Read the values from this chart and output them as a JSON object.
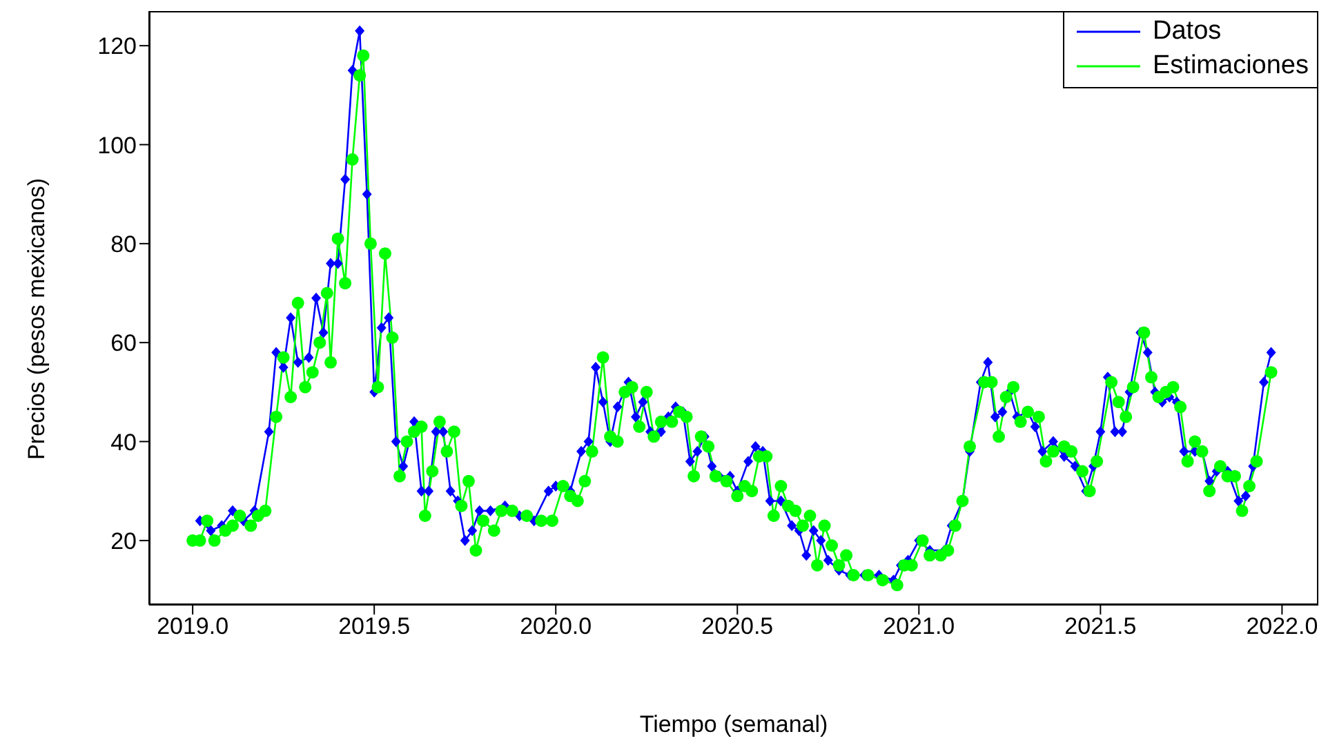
{
  "chart_data": {
    "type": "line",
    "xlabel": "Tiempo (semanal)",
    "ylabel": "Precios (pesos mexicanos)",
    "xlim": [
      2018.88,
      2022.1
    ],
    "xticks": [
      {
        "value": 2019,
        "label": "2019.0"
      },
      {
        "value": 2019.5,
        "label": "2019.5"
      },
      {
        "value": 2020,
        "label": "2020.0"
      },
      {
        "value": 2020.5,
        "label": "2020.5"
      },
      {
        "value": 2021,
        "label": "2021.0"
      },
      {
        "value": 2021.5,
        "label": "2021.5"
      },
      {
        "value": 2022,
        "label": "2022.0"
      }
    ],
    "ylim": [
      7,
      127
    ],
    "yticks": [
      20,
      40,
      60,
      80,
      100,
      120
    ],
    "grid": false,
    "legend": "top right",
    "line_style": "solid",
    "series": [
      {
        "name": "Datos",
        "color": "#0000ff",
        "marker": "diamond",
        "x": [
          2019.02,
          2019.05,
          2019.08,
          2019.11,
          2019.14,
          2019.17,
          2019.21,
          2019.23,
          2019.25,
          2019.27,
          2019.29,
          2019.32,
          2019.34,
          2019.36,
          2019.38,
          2019.4,
          2019.42,
          2019.44,
          2019.46,
          2019.48,
          2019.5,
          2019.52,
          2019.54,
          2019.56,
          2019.58,
          2019.61,
          2019.63,
          2019.65,
          2019.67,
          2019.69,
          2019.71,
          2019.73,
          2019.75,
          2019.77,
          2019.79,
          2019.82,
          2019.86,
          2019.9,
          2019.94,
          2019.98,
          2020,
          2020.04,
          2020.07,
          2020.09,
          2020.11,
          2020.13,
          2020.15,
          2020.17,
          2020.2,
          2020.22,
          2020.24,
          2020.26,
          2020.29,
          2020.31,
          2020.33,
          2020.35,
          2020.37,
          2020.39,
          2020.41,
          2020.43,
          2020.45,
          2020.48,
          2020.5,
          2020.53,
          2020.55,
          2020.57,
          2020.59,
          2020.62,
          2020.65,
          2020.67,
          2020.69,
          2020.71,
          2020.73,
          2020.75,
          2020.78,
          2020.81,
          2020.85,
          2020.89,
          2020.93,
          2020.95,
          2020.97,
          2021,
          2021.03,
          2021.07,
          2021.09,
          2021.12,
          2021.14,
          2021.17,
          2021.19,
          2021.21,
          2021.23,
          2021.25,
          2021.27,
          2021.3,
          2021.32,
          2021.34,
          2021.37,
          2021.4,
          2021.43,
          2021.46,
          2021.48,
          2021.5,
          2021.52,
          2021.54,
          2021.56,
          2021.58,
          2021.61,
          2021.63,
          2021.65,
          2021.67,
          2021.69,
          2021.71,
          2021.73,
          2021.76,
          2021.78,
          2021.8,
          2021.82,
          2021.85,
          2021.88,
          2021.9,
          2021.92,
          2021.95,
          2021.97
        ],
        "values": [
          24,
          22,
          23,
          26,
          24,
          26,
          42,
          58,
          55,
          65,
          56,
          57,
          69,
          62,
          76,
          76,
          93,
          115,
          123,
          90,
          50,
          63,
          65,
          40,
          35,
          44,
          30,
          30,
          42,
          42,
          30,
          28,
          20,
          22,
          26,
          26,
          27,
          25,
          24,
          30,
          31,
          30,
          38,
          40,
          55,
          48,
          40,
          47,
          52,
          45,
          48,
          42,
          42,
          45,
          47,
          46,
          36,
          38,
          41,
          35,
          33,
          33,
          30,
          36,
          39,
          38,
          28,
          28,
          23,
          22,
          17,
          22,
          20,
          16,
          14,
          13,
          13,
          13,
          12,
          15,
          16,
          20,
          18,
          18,
          23,
          28,
          38,
          52,
          56,
          45,
          46,
          50,
          45,
          46,
          43,
          38,
          40,
          37,
          35,
          30,
          35,
          42,
          53,
          42,
          42,
          50,
          62,
          58,
          50,
          48,
          49,
          48,
          38,
          38,
          38,
          32,
          34,
          34,
          28,
          29,
          35,
          52,
          58
        ]
      },
      {
        "name": "Estimaciones",
        "color": "#00ff00",
        "marker": "circle",
        "x": [
          2019,
          2019.02,
          2019.04,
          2019.06,
          2019.09,
          2019.11,
          2019.13,
          2019.16,
          2019.18,
          2019.2,
          2019.23,
          2019.25,
          2019.27,
          2019.29,
          2019.31,
          2019.33,
          2019.35,
          2019.37,
          2019.38,
          2019.4,
          2019.42,
          2019.44,
          2019.46,
          2019.47,
          2019.49,
          2019.51,
          2019.53,
          2019.55,
          2019.57,
          2019.59,
          2019.61,
          2019.63,
          2019.64,
          2019.66,
          2019.68,
          2019.7,
          2019.72,
          2019.74,
          2019.76,
          2019.78,
          2019.8,
          2019.83,
          2019.85,
          2019.88,
          2019.92,
          2019.96,
          2019.99,
          2020.02,
          2020.04,
          2020.06,
          2020.08,
          2020.1,
          2020.13,
          2020.15,
          2020.17,
          2020.19,
          2020.21,
          2020.23,
          2020.25,
          2020.27,
          2020.29,
          2020.32,
          2020.34,
          2020.36,
          2020.38,
          2020.4,
          2020.42,
          2020.44,
          2020.47,
          2020.5,
          2020.52,
          2020.54,
          2020.56,
          2020.58,
          2020.6,
          2020.62,
          2020.64,
          2020.66,
          2020.68,
          2020.7,
          2020.72,
          2020.74,
          2020.76,
          2020.78,
          2020.8,
          2020.82,
          2020.86,
          2020.9,
          2020.94,
          2020.96,
          2020.98,
          2021.01,
          2021.03,
          2021.06,
          2021.08,
          2021.1,
          2021.12,
          2021.14,
          2021.18,
          2021.2,
          2021.22,
          2021.24,
          2021.26,
          2021.28,
          2021.3,
          2021.33,
          2021.35,
          2021.37,
          2021.4,
          2021.42,
          2021.45,
          2021.47,
          2021.49,
          2021.53,
          2021.55,
          2021.57,
          2021.59,
          2021.62,
          2021.64,
          2021.66,
          2021.68,
          2021.7,
          2021.72,
          2021.74,
          2021.76,
          2021.78,
          2021.8,
          2021.83,
          2021.85,
          2021.87,
          2021.89,
          2021.91,
          2021.93,
          2021.97
        ],
        "values": [
          20,
          20,
          24,
          20,
          22,
          23,
          25,
          23,
          25,
          26,
          45,
          57,
          49,
          68,
          51,
          54,
          60,
          70,
          56,
          81,
          72,
          97,
          114,
          118,
          80,
          51,
          78,
          61,
          33,
          40,
          42,
          43,
          25,
          34,
          44,
          38,
          42,
          27,
          32,
          18,
          24,
          22,
          26,
          26,
          25,
          24,
          24,
          31,
          29,
          28,
          32,
          38,
          57,
          41,
          40,
          50,
          51,
          43,
          50,
          41,
          44,
          44,
          46,
          45,
          33,
          41,
          39,
          33,
          32,
          29,
          31,
          30,
          37,
          37,
          25,
          31,
          27,
          26,
          23,
          25,
          15,
          23,
          19,
          15,
          17,
          13,
          13,
          12,
          11,
          15,
          15,
          20,
          17,
          17,
          18,
          23,
          28,
          39,
          52,
          52,
          41,
          49,
          51,
          44,
          46,
          45,
          36,
          38,
          39,
          38,
          34,
          30,
          36,
          52,
          48,
          45,
          51,
          62,
          53,
          49,
          50,
          51,
          47,
          36,
          40,
          38,
          30,
          35,
          33,
          33,
          26,
          31,
          36,
          54
        ]
      }
    ]
  }
}
